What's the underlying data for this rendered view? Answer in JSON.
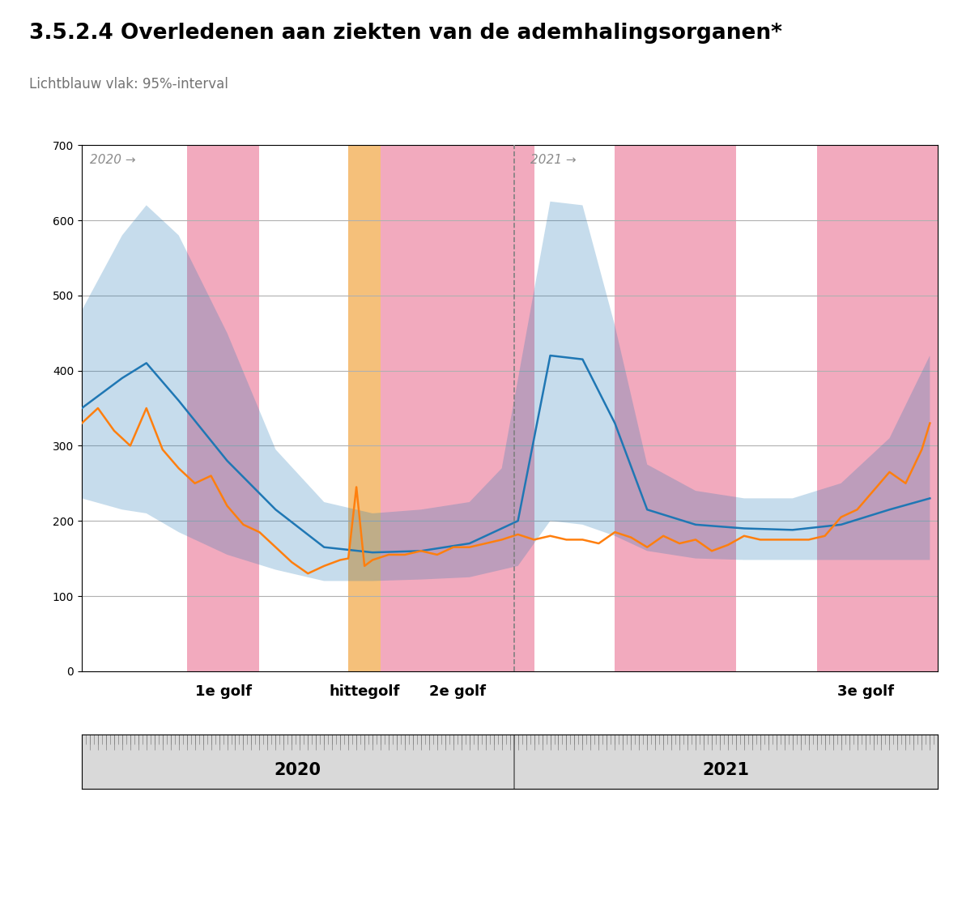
{
  "chart_data": {
    "type": "line",
    "title": "3.5.2.4 Overledenen aan ziekten van de ademhalingsorganen*",
    "subtitle": "Lichtblauw vlak: 95%-interval",
    "xlim": [
      0,
      106
    ],
    "ylim": [
      0,
      700
    ],
    "yticks": [
      0,
      100,
      200,
      300,
      400,
      500,
      600,
      700
    ],
    "grid": true,
    "tick_labels": "y",
    "spans": [
      {
        "from": 13,
        "to": 22,
        "color": "#f2aabe"
      },
      {
        "from": 37,
        "to": 56,
        "color": "#f2aabe"
      },
      {
        "from": 66,
        "to": 81,
        "color": "#f2aabe"
      },
      {
        "from": 91,
        "to": 106,
        "color": "#f2aabe"
      },
      {
        "from": 33,
        "to": 37,
        "color": "#f5c07a"
      }
    ],
    "series": [
      {
        "type": "band",
        "upper": {
          "x": [
            0,
            5,
            8,
            12,
            18,
            24,
            30,
            36,
            42,
            48,
            52,
            58,
            62,
            66,
            70,
            76,
            82,
            88,
            94,
            100,
            105
          ],
          "values": [
            480,
            580,
            620,
            580,
            450,
            295,
            225,
            210,
            215,
            225,
            270,
            625,
            620,
            460,
            275,
            240,
            230,
            230,
            250,
            310,
            420
          ]
        },
        "lower": {
          "x": [
            0,
            5,
            8,
            12,
            18,
            24,
            30,
            36,
            42,
            48,
            54,
            58,
            62,
            66,
            70,
            76,
            82,
            88,
            94,
            100,
            105
          ],
          "values": [
            230,
            215,
            210,
            185,
            155,
            135,
            120,
            120,
            122,
            125,
            140,
            200,
            195,
            180,
            160,
            150,
            148,
            148,
            148,
            148,
            148
          ]
        }
      },
      {
        "type": "line",
        "x": [
          0,
          5,
          8,
          12,
          18,
          24,
          30,
          36,
          42,
          48,
          54,
          58,
          62,
          66,
          70,
          76,
          82,
          88,
          94,
          100,
          105
        ],
        "values": [
          350,
          390,
          410,
          360,
          280,
          215,
          165,
          158,
          160,
          170,
          200,
          420,
          415,
          330,
          215,
          195,
          190,
          188,
          195,
          215,
          230
        ]
      },
      {
        "type": "line",
        "x": [
          0,
          2,
          4,
          6,
          8,
          10,
          12,
          14,
          16,
          18,
          20,
          22,
          24,
          26,
          28,
          30,
          32,
          33,
          34,
          35,
          36,
          38,
          40,
          42,
          44,
          46,
          48,
          50,
          52,
          54,
          56,
          58,
          60,
          62,
          64,
          66,
          68,
          70,
          72,
          74,
          76,
          78,
          80,
          82,
          84,
          86,
          88,
          90,
          92,
          94,
          96,
          98,
          100,
          102,
          104,
          105
        ],
        "values": [
          330,
          350,
          320,
          300,
          350,
          295,
          270,
          250,
          260,
          220,
          195,
          185,
          165,
          145,
          130,
          140,
          148,
          150,
          245,
          140,
          148,
          155,
          155,
          160,
          155,
          165,
          165,
          170,
          175,
          182,
          175,
          180,
          175,
          175,
          170,
          185,
          178,
          165,
          180,
          170,
          175,
          160,
          168,
          180,
          175,
          175,
          175,
          175,
          180,
          205,
          215,
          240,
          265,
          250,
          295,
          330
        ]
      }
    ],
    "vlines": [
      {
        "x": 53.5,
        "line_style": "dashed"
      }
    ],
    "annotations": [
      {
        "text": "2020 →",
        "x": 1,
        "y": 688
      },
      {
        "text": "2021 →",
        "x": 55.5,
        "y": 688
      }
    ],
    "period_labels": [
      {
        "text": "1e golf",
        "x": 17.5
      },
      {
        "text": "hittegolf",
        "x": 35
      },
      {
        "text": "2e golf",
        "x": 46.5
      },
      {
        "text": "3e golf",
        "x": 97
      }
    ],
    "year_labels": [
      "2020",
      "2021"
    ]
  }
}
